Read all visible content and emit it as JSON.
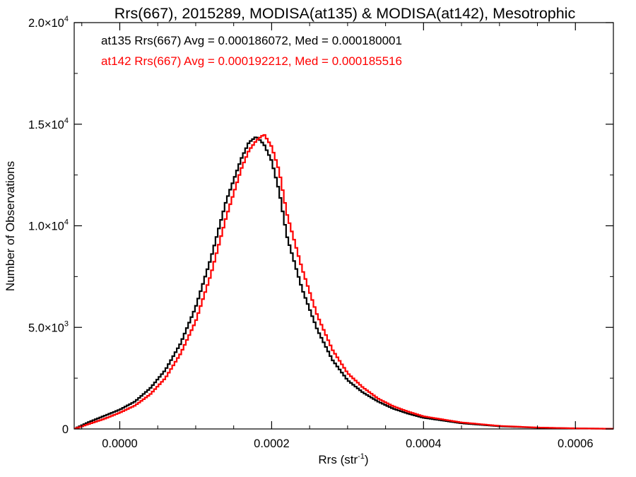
{
  "chart_data": {
    "type": "line",
    "title": "Rrs(667), 2015289, MODISA(at135) & MODISA(at142), Mesotrophic",
    "xlabel_main": "Rrs (str",
    "xlabel_sup": "-1",
    "xlabel_end": ")",
    "ylabel": "Number of Observations",
    "xlim": [
      -6e-05,
      0.00065
    ],
    "ylim": [
      0,
      20000
    ],
    "grid": false,
    "x_ticks": [
      {
        "value": 0.0,
        "label": "0.0000"
      },
      {
        "value": 0.0002,
        "label": "0.0002"
      },
      {
        "value": 0.0004,
        "label": "0.0004"
      },
      {
        "value": 0.0006,
        "label": "0.0006"
      }
    ],
    "y_ticks": [
      {
        "value": 0,
        "mantissa": "0",
        "exp": ""
      },
      {
        "value": 5000,
        "mantissa": "5.0×10",
        "exp": "3"
      },
      {
        "value": 10000,
        "mantissa": "1.0×10",
        "exp": "4"
      },
      {
        "value": 15000,
        "mantissa": "1.5×10",
        "exp": "4"
      },
      {
        "value": 20000,
        "mantissa": "2.0×10",
        "exp": "4"
      }
    ],
    "annotations": [
      {
        "text": "at135 Rrs(667) Avg = 0.000186072, Med = 0.000180001",
        "color": "#000000"
      },
      {
        "text": "at142 Rrs(667) Avg = 0.000192212, Med = 0.000185516",
        "color": "#ff0000"
      }
    ],
    "series": [
      {
        "color": "#000000",
        "x": [
          -6e-05,
          -4e-05,
          -2e-05,
          0.0,
          2e-05,
          4e-05,
          6e-05,
          8e-05,
          0.0001,
          0.00012,
          0.00014,
          0.00016,
          0.00017,
          0.00018,
          0.00019,
          0.0002,
          0.00021,
          0.00022,
          0.00024,
          0.00026,
          0.00028,
          0.0003,
          0.00032,
          0.00034,
          0.00036,
          0.00038,
          0.0004,
          0.00045,
          0.0005,
          0.00055,
          0.0006,
          0.00065
        ],
        "y": [
          0,
          350,
          650,
          950,
          1350,
          2000,
          2900,
          4200,
          6000,
          8400,
          11200,
          13300,
          14100,
          14400,
          14000,
          13200,
          11700,
          9500,
          6900,
          4900,
          3400,
          2400,
          1800,
          1350,
          1000,
          750,
          550,
          280,
          130,
          60,
          25,
          10
        ]
      },
      {
        "color": "#ff0000",
        "x": [
          -6e-05,
          -4e-05,
          -2e-05,
          0.0,
          2e-05,
          4e-05,
          6e-05,
          8e-05,
          0.0001,
          0.00012,
          0.00014,
          0.00016,
          0.00017,
          0.00018,
          0.00019,
          0.0002,
          0.00021,
          0.00022,
          0.00024,
          0.00026,
          0.00028,
          0.0003,
          0.00032,
          0.00034,
          0.00036,
          0.00038,
          0.0004,
          0.00045,
          0.0005,
          0.00055,
          0.0006,
          0.00065
        ],
        "y": [
          0,
          250,
          500,
          800,
          1150,
          1700,
          2500,
          3700,
          5300,
          7600,
          10400,
          12800,
          13700,
          14200,
          14500,
          13900,
          12700,
          10600,
          7900,
          5600,
          3900,
          2750,
          2050,
          1500,
          1120,
          850,
          620,
          320,
          150,
          70,
          30,
          10
        ]
      }
    ]
  }
}
